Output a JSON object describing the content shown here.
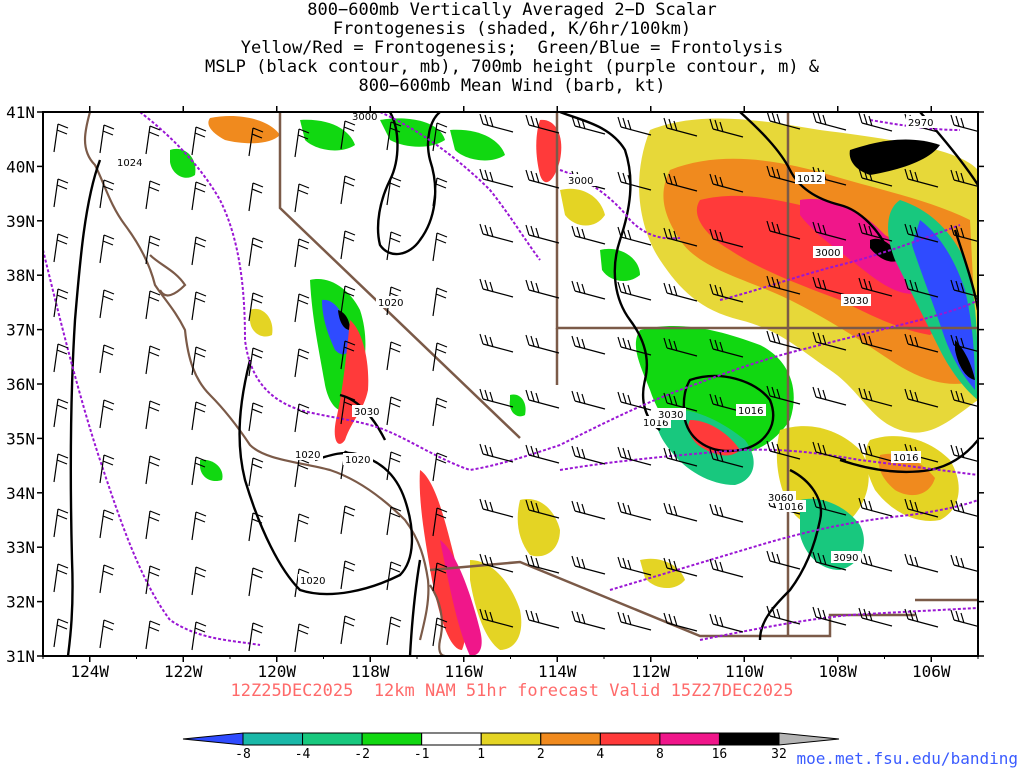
{
  "title_lines": [
    "800−600mb Vertically Averaged 2−D Scalar",
    "Frontogenesis (shaded, K/6hr/100km)",
    "Yellow/Red = Frontogenesis;  Green/Blue = Frontolysis",
    "MSLP (black contour, mb), 700mb height (purple contour, m) &",
    "800−600mb Mean Wind (barb, kt)"
  ],
  "valid_line": "12Z25DEC2025  12km NAM 51hr forecast Valid 15Z27DEC2025",
  "credit": "moe.met.fsu.edu/banding",
  "axes": {
    "lat_labels": [
      "41N",
      "40N",
      "39N",
      "38N",
      "37N",
      "36N",
      "35N",
      "34N",
      "33N",
      "32N",
      "31N"
    ],
    "lon_labels": [
      "124W",
      "122W",
      "120W",
      "118W",
      "116W",
      "114W",
      "112W",
      "110W",
      "108W",
      "106W"
    ],
    "lat_range": [
      31,
      41
    ],
    "lon_range": [
      -125,
      -105
    ]
  },
  "colorbar": {
    "labels": [
      "-8",
      "-4",
      "-2",
      "-1",
      "1",
      "2",
      "4",
      "8",
      "16",
      "32"
    ],
    "colors": [
      "#2f4bff",
      "#1ab8a8",
      "#18c87e",
      "#11d811",
      "#ffffff",
      "#e4d424",
      "#f08a1e",
      "#ff3a3a",
      "#f0168a",
      "#000000",
      "#b4b4b4"
    ]
  },
  "contour_labels": {
    "mslp": [
      "1024",
      "1020",
      "1020",
      "1020",
      "1020",
      "1012",
      "1016",
      "1016",
      "1016",
      "1016",
      "1016"
    ],
    "height": [
      "3000",
      "3000",
      "3000",
      "3030",
      "3030",
      "3030",
      "3060",
      "3090",
      "2970"
    ]
  }
}
